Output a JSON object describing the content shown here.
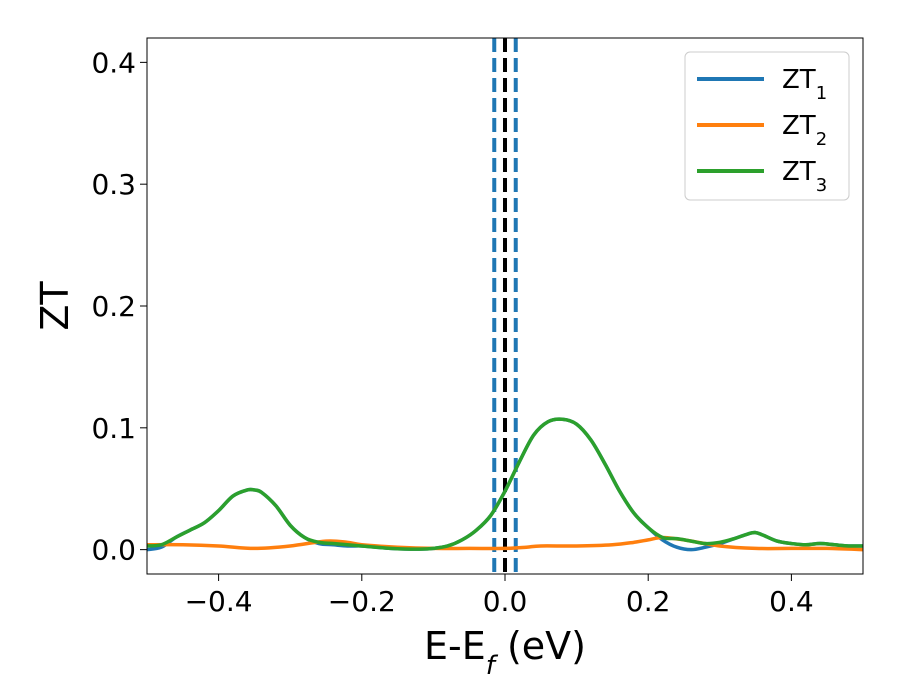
{
  "chart_data": {
    "type": "line",
    "xlabel": "E-E_f (eV)",
    "xlabel_parts": {
      "main": "E-E",
      "sub": "f",
      "unit": " (eV)"
    },
    "ylabel": "ZT",
    "xlim": [
      -0.5,
      0.5
    ],
    "ylim": [
      -0.02,
      0.42
    ],
    "xticks": [
      -0.4,
      -0.2,
      0.0,
      0.2,
      0.4
    ],
    "xtick_labels": [
      "−0.4",
      "−0.2",
      "0.0",
      "0.2",
      "0.4"
    ],
    "yticks": [
      0.0,
      0.1,
      0.2,
      0.3,
      0.4
    ],
    "ytick_labels": [
      "0.0",
      "0.1",
      "0.2",
      "0.3",
      "0.4"
    ],
    "grid": false,
    "legend_position": "top-right",
    "series": [
      {
        "name": "ZT1",
        "label_main": "ZT",
        "label_sub": "1",
        "color": "#1f77b4",
        "x": [
          -0.5,
          -0.48,
          -0.46,
          -0.44,
          -0.42,
          -0.4,
          -0.38,
          -0.36,
          -0.35,
          -0.34,
          -0.32,
          -0.3,
          -0.28,
          -0.26,
          -0.24,
          -0.22,
          -0.2,
          -0.18,
          -0.16,
          -0.14,
          -0.12,
          -0.1,
          -0.08,
          -0.06,
          -0.04,
          -0.02,
          0.0,
          0.02,
          0.04,
          0.06,
          0.08,
          0.1,
          0.12,
          0.14,
          0.16,
          0.18,
          0.2,
          0.22,
          0.24,
          0.26,
          0.28,
          0.3,
          0.32,
          0.34,
          0.35,
          0.36,
          0.38,
          0.4,
          0.42,
          0.44,
          0.46,
          0.48,
          0.5
        ],
        "y": [
          0.0,
          0.002,
          0.01,
          0.016,
          0.022,
          0.032,
          0.044,
          0.049,
          0.049,
          0.047,
          0.036,
          0.02,
          0.01,
          0.005,
          0.004,
          0.003,
          0.003,
          0.002,
          0.001,
          0.0005,
          0.0004,
          0.001,
          0.003,
          0.008,
          0.016,
          0.028,
          0.048,
          0.072,
          0.094,
          0.105,
          0.107,
          0.103,
          0.09,
          0.07,
          0.048,
          0.03,
          0.018,
          0.008,
          0.002,
          0.0,
          0.002,
          0.005,
          0.009,
          0.013,
          0.014,
          0.012,
          0.007,
          0.005,
          0.004,
          0.005,
          0.004,
          0.003,
          0.003
        ]
      },
      {
        "name": "ZT2",
        "label_main": "ZT",
        "label_sub": "2",
        "color": "#ff7f0e",
        "x": [
          -0.5,
          -0.45,
          -0.4,
          -0.35,
          -0.3,
          -0.25,
          -0.22,
          -0.2,
          -0.15,
          -0.1,
          -0.05,
          0.0,
          0.03,
          0.05,
          0.1,
          0.15,
          0.18,
          0.2,
          0.22,
          0.25,
          0.3,
          0.35,
          0.4,
          0.45,
          0.5
        ],
        "y": [
          0.004,
          0.004,
          0.003,
          0.001,
          0.003,
          0.007,
          0.006,
          0.004,
          0.002,
          0.001,
          0.001,
          0.001,
          0.002,
          0.003,
          0.003,
          0.004,
          0.006,
          0.008,
          0.01,
          0.008,
          0.003,
          0.001,
          0.001,
          0.001,
          0.0
        ]
      },
      {
        "name": "ZT3",
        "label_main": "ZT",
        "label_sub": "3",
        "color": "#2ca02c",
        "x": [
          -0.5,
          -0.48,
          -0.46,
          -0.44,
          -0.42,
          -0.4,
          -0.38,
          -0.36,
          -0.35,
          -0.34,
          -0.32,
          -0.3,
          -0.28,
          -0.26,
          -0.24,
          -0.22,
          -0.2,
          -0.18,
          -0.16,
          -0.14,
          -0.12,
          -0.1,
          -0.08,
          -0.06,
          -0.04,
          -0.02,
          0.0,
          0.02,
          0.04,
          0.06,
          0.08,
          0.1,
          0.12,
          0.14,
          0.16,
          0.18,
          0.2,
          0.22,
          0.24,
          0.26,
          0.28,
          0.3,
          0.32,
          0.34,
          0.35,
          0.36,
          0.38,
          0.4,
          0.42,
          0.44,
          0.46,
          0.48,
          0.5
        ],
        "y": [
          0.003,
          0.004,
          0.01,
          0.016,
          0.022,
          0.032,
          0.044,
          0.049,
          0.049,
          0.047,
          0.036,
          0.02,
          0.01,
          0.006,
          0.005,
          0.004,
          0.003,
          0.002,
          0.001,
          0.0005,
          0.0004,
          0.001,
          0.003,
          0.008,
          0.016,
          0.028,
          0.048,
          0.072,
          0.094,
          0.105,
          0.107,
          0.103,
          0.09,
          0.07,
          0.048,
          0.03,
          0.018,
          0.01,
          0.009,
          0.007,
          0.005,
          0.006,
          0.009,
          0.013,
          0.014,
          0.012,
          0.007,
          0.005,
          0.004,
          0.005,
          0.004,
          0.003,
          0.003
        ]
      }
    ],
    "vertical_lines": [
      {
        "x": 0.0,
        "color": "#000000",
        "style": "dashed"
      },
      {
        "x": -0.015,
        "color": "#1f77b4",
        "style": "dashed"
      },
      {
        "x": 0.015,
        "color": "#1f77b4",
        "style": "dashed"
      }
    ]
  }
}
